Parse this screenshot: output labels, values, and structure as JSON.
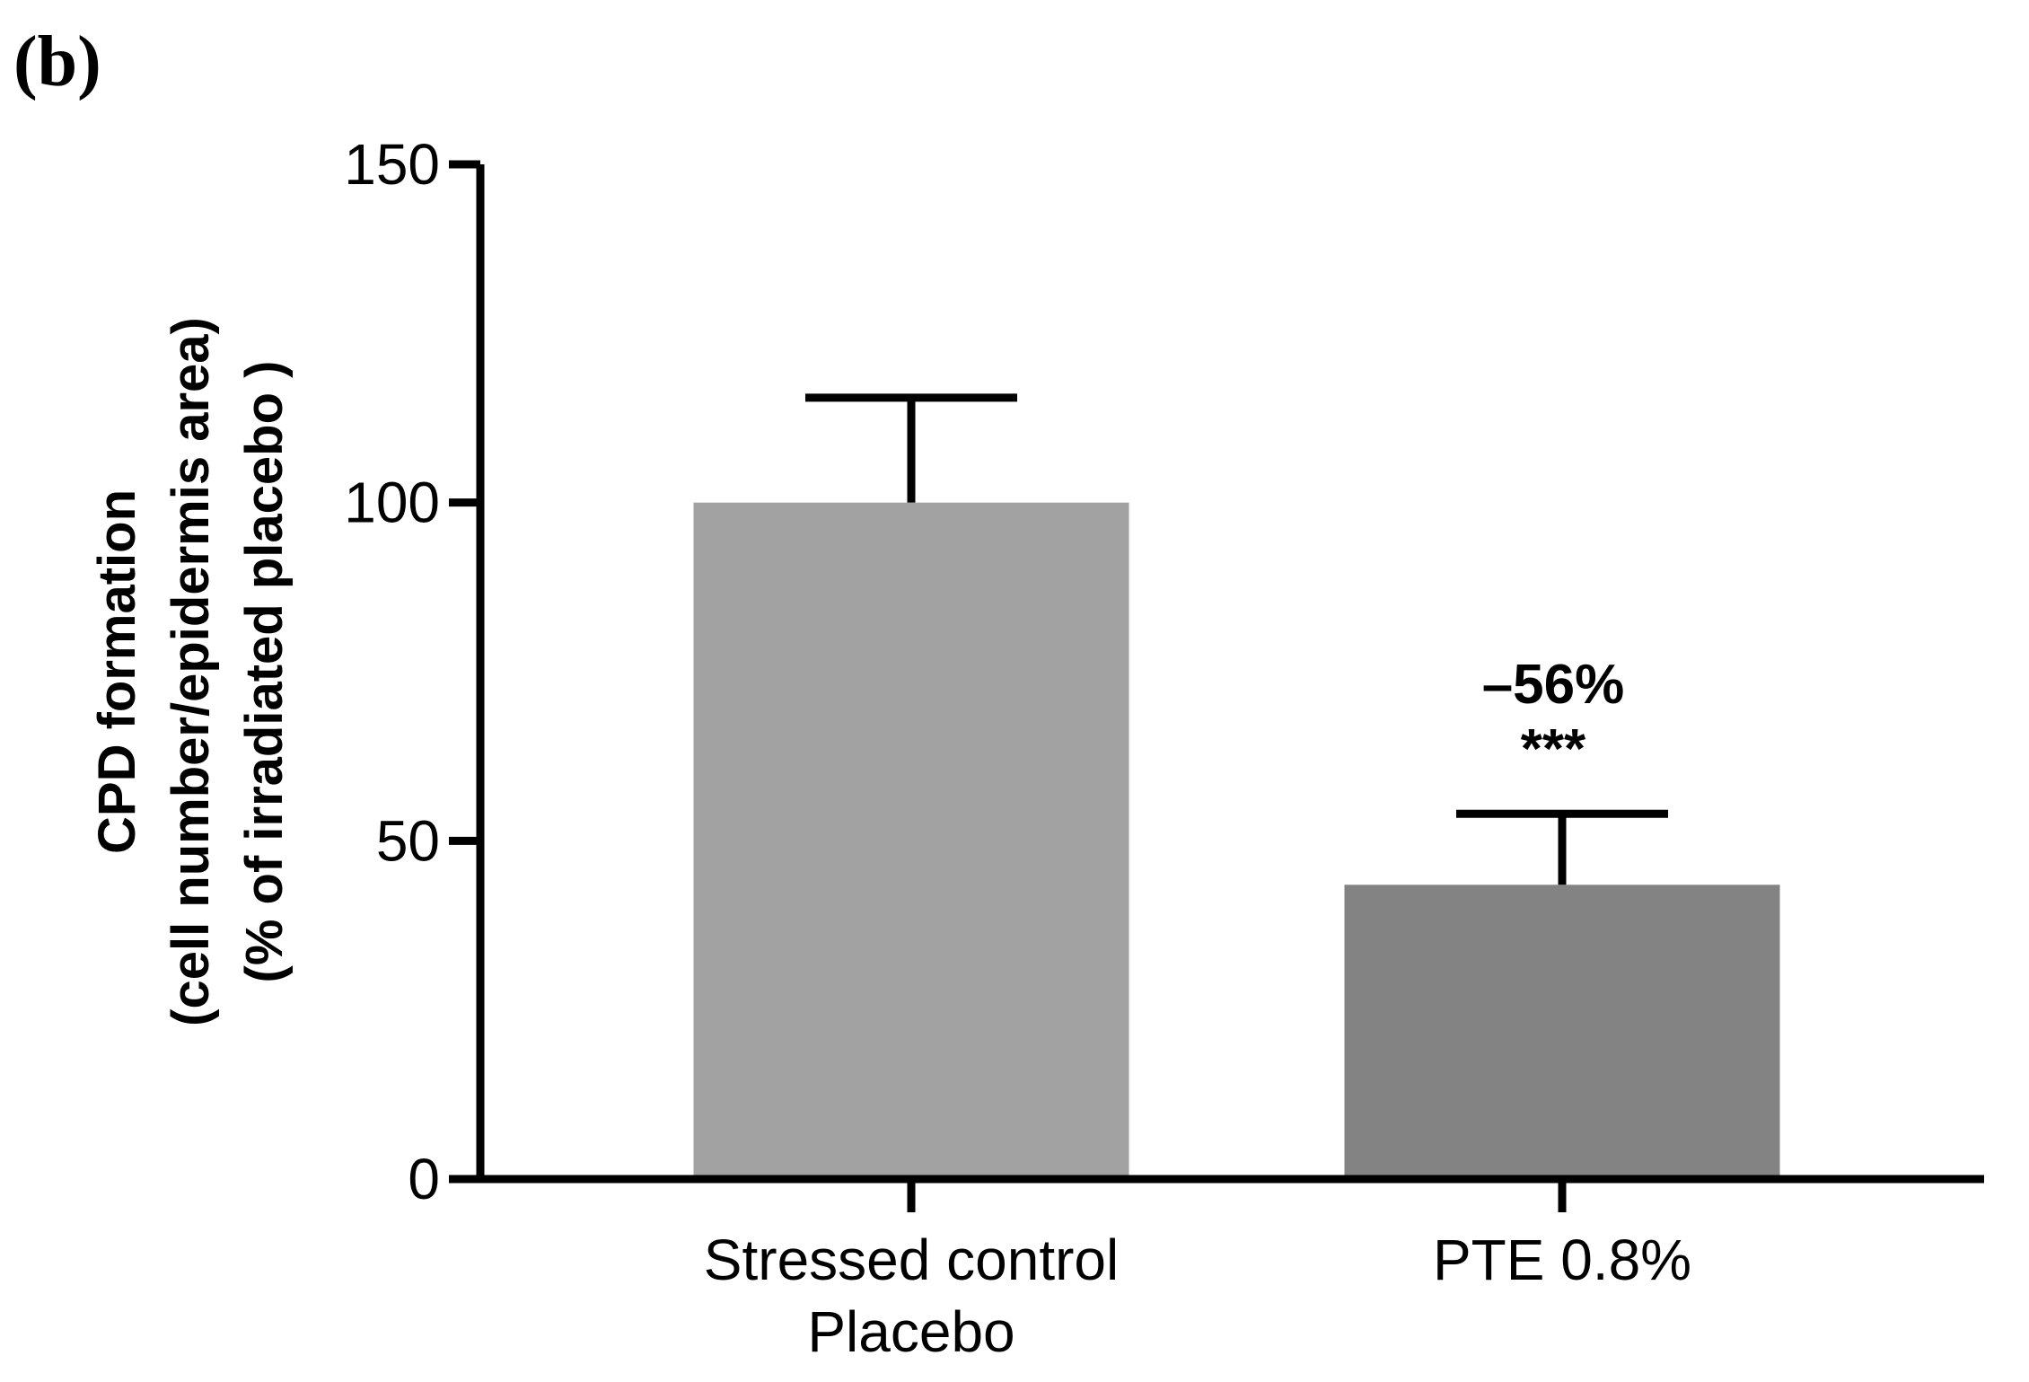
{
  "panel_label": "(b)",
  "chart_data": {
    "type": "bar",
    "title": "",
    "xlabel": "",
    "ylabel_lines": [
      "CPD formation",
      "(cell number/epidermis area)",
      "(% of irradiated placebo )"
    ],
    "ylim": [
      0,
      150
    ],
    "yticks": [
      0,
      50,
      100,
      150
    ],
    "categories": [
      [
        "Stressed control",
        "Placebo"
      ],
      [
        "PTE 0.8%"
      ]
    ],
    "values": [
      100,
      43.5
    ],
    "error_upper": [
      115.5,
      54
    ],
    "bar_colors": [
      "#a2a2a2",
      "#838383"
    ],
    "annotations": [
      {
        "category_index": 1,
        "lines": [
          "–56%",
          "***"
        ]
      }
    ]
  }
}
